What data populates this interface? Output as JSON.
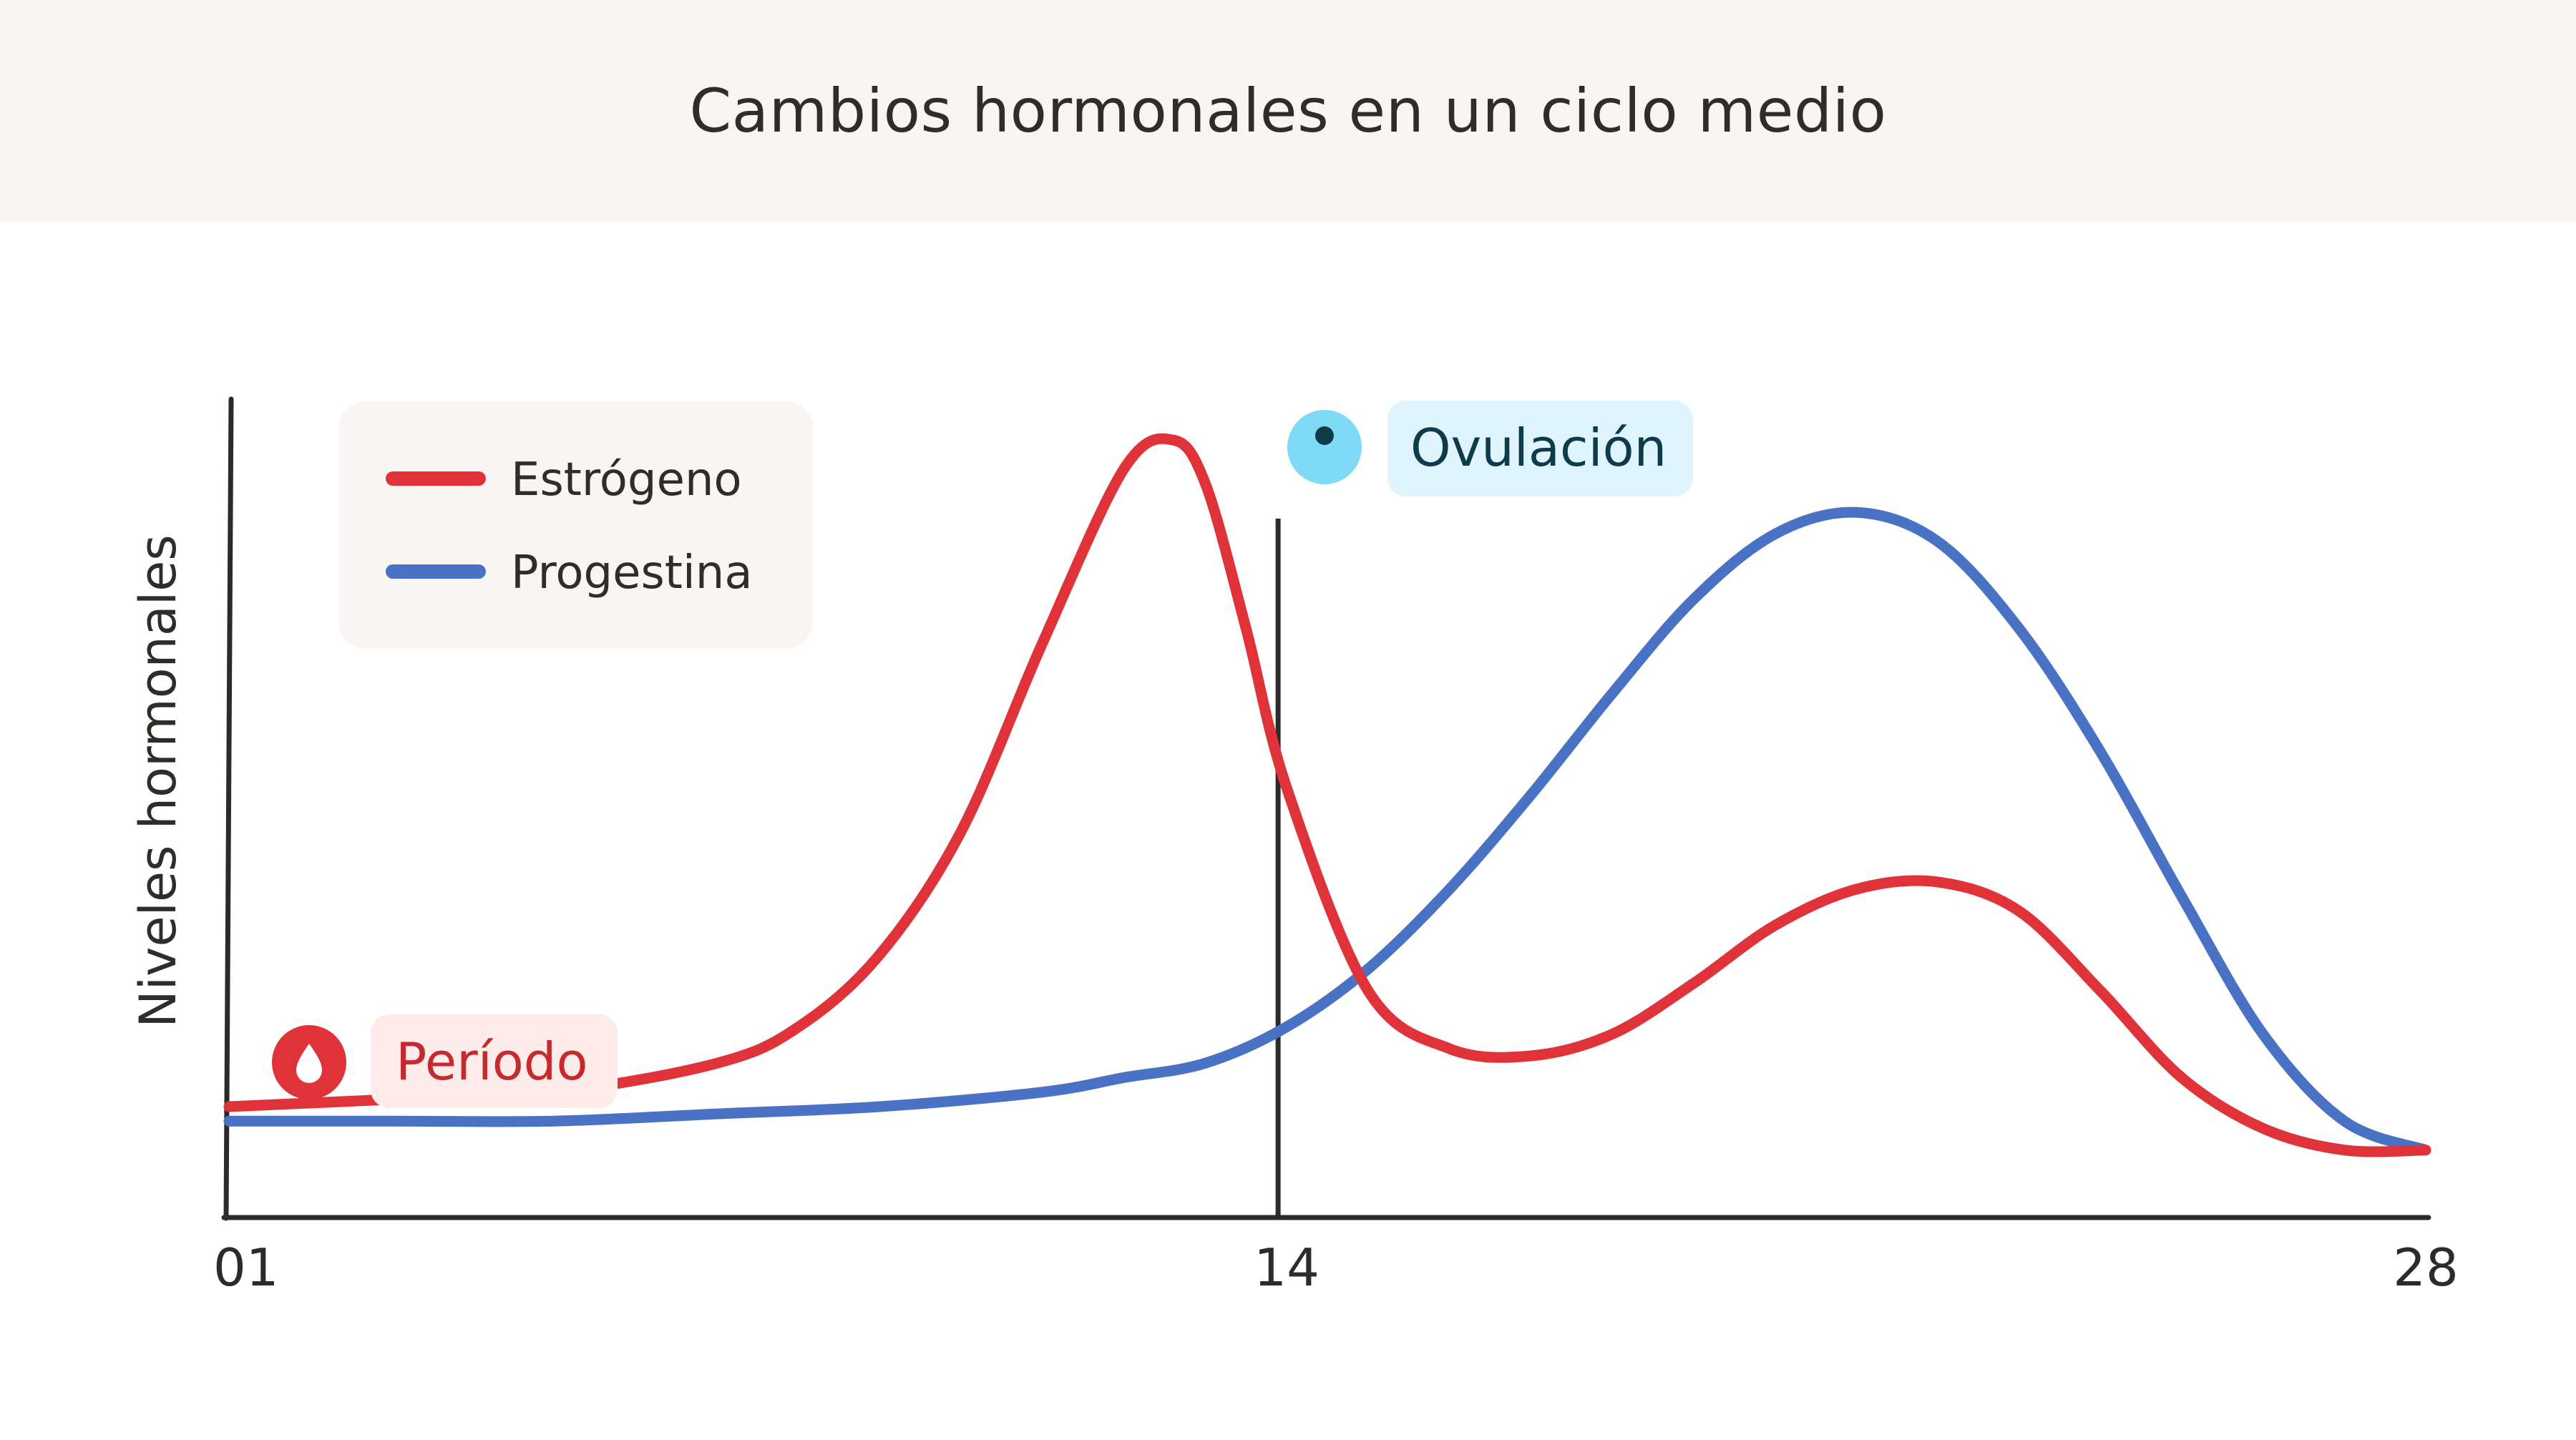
{
  "header": {
    "title": "Cambios hormonales en un ciclo medio"
  },
  "colors": {
    "estrogen": "#e03339",
    "progestin": "#4a72c4",
    "axis": "#2b2b2b",
    "header_bg": "#f8f5f2",
    "legend_bg": "#f8f5f2",
    "period_badge_bg": "#fdecea",
    "period_text": "#c62a2f",
    "ovulation_badge_bg": "#dff4fc",
    "ovulation_icon": "#7fdaf5",
    "ovulation_text": "#0d3b4a"
  },
  "chart_data": {
    "type": "line",
    "xlabel": "",
    "ylabel": "Niveles hormonales",
    "xlim": [
      1,
      28
    ],
    "ylim": [
      0,
      100
    ],
    "x_ticks": [
      "01",
      "14",
      "28"
    ],
    "x_tick_values": [
      1,
      14,
      28
    ],
    "legend_position": "top-left",
    "grid": false,
    "series": [
      {
        "name": "Estrógeno",
        "color": "#e03339",
        "x": [
          1,
          3,
          5,
          7,
          8,
          9,
          10,
          11,
          12,
          12.6,
          13,
          13.5,
          14,
          15,
          16,
          17,
          18,
          19,
          20,
          21,
          22,
          23,
          24,
          25,
          26,
          27,
          28
        ],
        "y": [
          8,
          9,
          10,
          14,
          19,
          29,
          46,
          72,
          96,
          100,
          94,
          74,
          52,
          24,
          16,
          15,
          18,
          25,
          33,
          38,
          39,
          35,
          24,
          12,
          5,
          2,
          2
        ]
      },
      {
        "name": "Progestina",
        "color": "#4a72c4",
        "x": [
          1,
          3,
          5,
          7,
          9,
          11,
          12,
          13,
          14,
          15,
          16,
          17,
          18,
          19,
          20,
          21,
          22,
          23,
          24,
          25,
          26,
          27,
          28
        ],
        "y": [
          6,
          6,
          6,
          7,
          8,
          10,
          12,
          14,
          19,
          27,
          38,
          51,
          65,
          78,
          87,
          90,
          86,
          74,
          57,
          37,
          18,
          6,
          2
        ]
      }
    ],
    "annotations": [
      {
        "label": "Período",
        "x": 1,
        "icon": "blood-drop-icon"
      },
      {
        "label": "Ovulación",
        "x": 14,
        "icon": "ovum-icon"
      }
    ]
  }
}
